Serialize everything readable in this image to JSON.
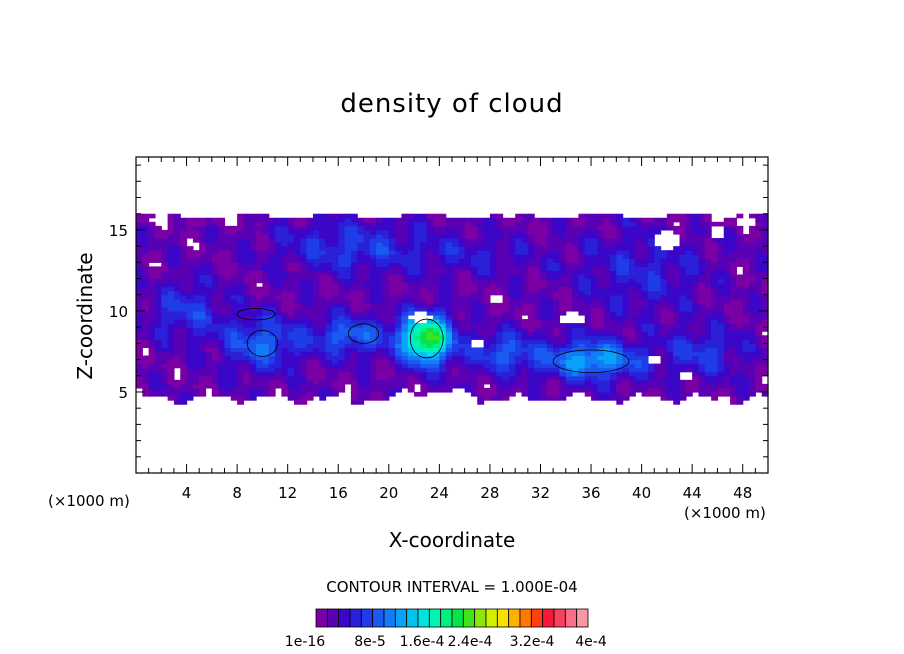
{
  "chart_data": {
    "type": "heatmap",
    "title": "density of cloud",
    "xlabel": "X-coordinate",
    "ylabel": "Z-coordinate",
    "x_unit_label": "(×1000 m)",
    "x_unit_label_right": "(×1000 m)",
    "xlim": [
      0,
      50
    ],
    "ylim": [
      0,
      19.5
    ],
    "xticks": [
      4,
      8,
      12,
      16,
      20,
      24,
      28,
      32,
      36,
      40,
      44,
      48
    ],
    "yticks": [
      5,
      10,
      15
    ],
    "contour_interval_label": "CONTOUR INTERVAL = 1.000E-04",
    "colorbar": {
      "colors": [
        "#7a00a6",
        "#5a00b4",
        "#3a06c8",
        "#2a20d8",
        "#1f3ce8",
        "#1a5af0",
        "#127cf6",
        "#0aa2f8",
        "#00c4f0",
        "#00e4e0",
        "#00f4b4",
        "#00f080",
        "#08e448",
        "#40e41c",
        "#8ce80c",
        "#d0f000",
        "#f8e000",
        "#ffb000",
        "#ff7800",
        "#ff4010",
        "#f81838",
        "#f84060",
        "#f87088",
        "#f898a0"
      ],
      "tick_labels": [
        "1e-16",
        "8e-5",
        "1.6e-4",
        "2.4e-4",
        "3.2e-4",
        "4e-4"
      ]
    },
    "cloud_layer": {
      "z_bottom_km": 4.5,
      "z_top_km": 16.0,
      "core_region": {
        "x_km": [
          21,
          25
        ],
        "z_km": [
          6.5,
          9.5
        ],
        "max_value": 0.00016
      }
    }
  }
}
